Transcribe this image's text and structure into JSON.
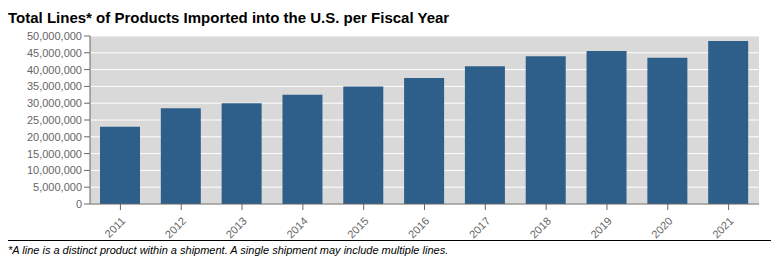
{
  "chart_data": {
    "type": "bar",
    "title": "Total Lines* of Products Imported into the U.S. per Fiscal Year",
    "annotations": [
      "*A line is a distinct product within a shipment. A single shipment may include multiple lines."
    ],
    "categories": [
      "2011",
      "2012",
      "2013",
      "2014",
      "2015",
      "2016",
      "2017",
      "2018",
      "2019",
      "2020",
      "2021"
    ],
    "values": [
      23000000,
      28500000,
      30000000,
      32500000,
      35000000,
      37500000,
      41000000,
      44000000,
      45500000,
      43500000,
      48500000
    ],
    "color": "#2E5F8A",
    "ylim": [
      0,
      50000000
    ],
    "yticks": [
      0,
      {
        "value": 5000000,
        "label": "5,000,000"
      },
      {
        "value": 10000000,
        "label": "10,000,000"
      },
      {
        "value": 15000000,
        "label": "15,000,000"
      },
      {
        "value": 20000000,
        "label": "20,000,000"
      },
      {
        "value": 25000000,
        "label": "25,000,000"
      },
      {
        "value": 30000000,
        "label": "30,000,000"
      },
      {
        "value": 35000000,
        "label": "35,000,000"
      },
      {
        "value": 40000000,
        "label": "40,000,000"
      },
      {
        "value": 45000000,
        "label": "45,000,000"
      },
      {
        "value": 50000000,
        "label": "50,000,000"
      }
    ],
    "grid": true
  }
}
